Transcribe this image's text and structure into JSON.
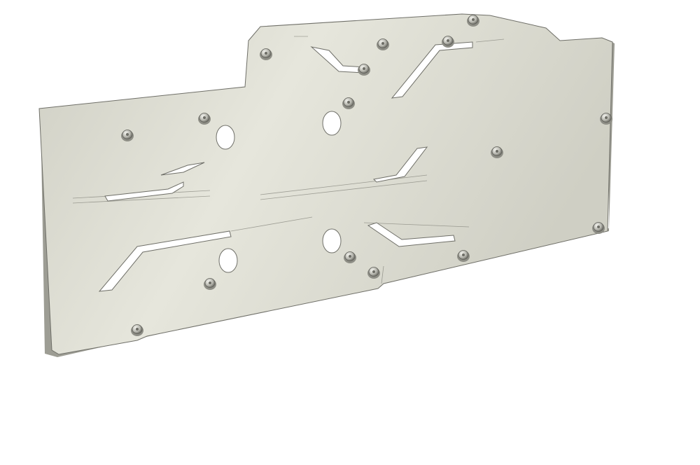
{
  "scene": {
    "subject": "backplate",
    "background_color": "#ffffff",
    "plate_color_light": "#e6e6dc",
    "plate_color_mid": "#cfcfc4",
    "plate_color_dark": "#9d9d94",
    "edge_color": "#6f6f68",
    "screw_color": "#b8b8b0",
    "cutout_color": "#ffffff",
    "hole_count": 4,
    "slot_count": 7,
    "screw_count": 16
  }
}
